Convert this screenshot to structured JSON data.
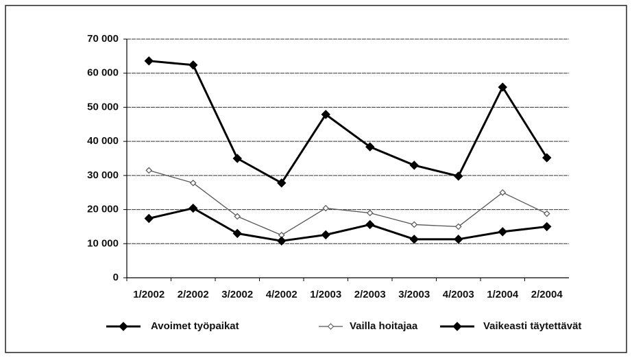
{
  "chart_data": {
    "type": "line",
    "categories": [
      "1/2002",
      "2/2002",
      "3/2002",
      "4/2002",
      "1/2003",
      "2/2003",
      "3/2003",
      "4/2003",
      "1/2004",
      "2/2004"
    ],
    "series": [
      {
        "name": "Avoimet työpaikat",
        "color": "#000000",
        "values": [
          63600,
          62400,
          35000,
          27800,
          47900,
          38400,
          33000,
          29800,
          55900,
          35200
        ]
      },
      {
        "name": "Vailla hoitajaa",
        "color": "#555555",
        "values": [
          31500,
          27800,
          18000,
          12500,
          20400,
          19000,
          15600,
          15000,
          25000,
          18800
        ]
      },
      {
        "name": "Vaikeasti täytettävät",
        "color": "#000000",
        "values": [
          17400,
          20400,
          13000,
          10800,
          12600,
          15600,
          11300,
          11300,
          13500,
          15000
        ]
      }
    ],
    "ylim": [
      0,
      70000
    ],
    "yticks": [
      0,
      {
        "value": 10000,
        "label": "10 000"
      },
      {
        "value": 20000,
        "label": "20 000"
      },
      {
        "value": 30000,
        "label": "30 000"
      },
      {
        "value": 40000,
        "label": "40 000"
      },
      {
        "value": 50000,
        "label": "50 000"
      },
      {
        "value": 60000,
        "label": "60 000"
      },
      {
        "value": 70000,
        "label": "70 000"
      }
    ],
    "grid": true
  }
}
